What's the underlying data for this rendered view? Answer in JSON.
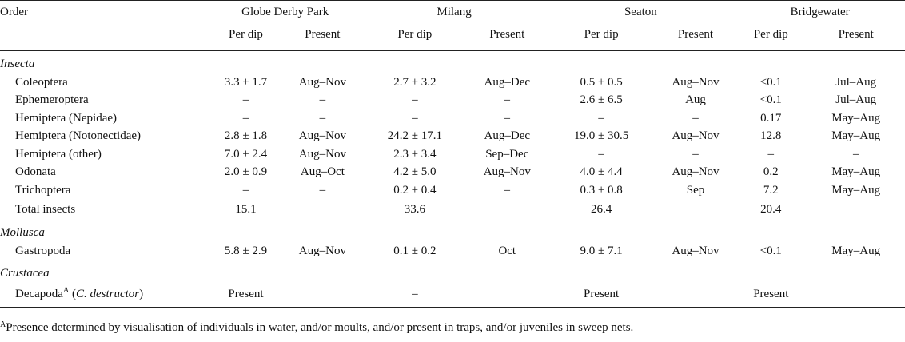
{
  "header": {
    "order_label": "Order",
    "sites": [
      "Globe Derby Park",
      "Milang",
      "Seaton",
      "Bridgewater"
    ],
    "per_dip_label": "Per dip",
    "present_label": "Present"
  },
  "groups": {
    "insecta": "Insecta",
    "mollusca": "Mollusca",
    "crustacea": "Crustacea"
  },
  "rows": [
    {
      "label": "Coleoptera",
      "v": [
        "3.3 ± 1.7",
        "Aug–Nov",
        "2.7 ± 3.2",
        "Aug–Dec",
        "0.5 ± 0.5",
        "Aug–Nov",
        "<0.1",
        "Jul–Aug"
      ]
    },
    {
      "label": "Ephemeroptera",
      "v": [
        "–",
        "–",
        "–",
        "–",
        "2.6 ± 6.5",
        "Aug",
        "<0.1",
        "Jul–Aug"
      ]
    },
    {
      "label": "Hemiptera (Nepidae)",
      "v": [
        "–",
        "–",
        "–",
        "–",
        "–",
        "–",
        "0.17",
        "May–Aug"
      ]
    },
    {
      "label": "Hemiptera (Notonectidae)",
      "v": [
        "2.8 ± 1.8",
        "Aug–Nov",
        "24.2 ± 17.1",
        "Aug–Dec",
        "19.0 ± 30.5",
        "Aug–Nov",
        "12.8",
        "May–Aug"
      ]
    },
    {
      "label": "Hemiptera (other)",
      "v": [
        "7.0 ± 2.4",
        "Aug–Nov",
        "2.3 ± 3.4",
        "Sep–Dec",
        "–",
        "–",
        "–",
        "–"
      ]
    },
    {
      "label": "Odonata",
      "v": [
        "2.0 ± 0.9",
        "Aug–Oct",
        "4.2 ± 5.0",
        "Aug–Nov",
        "4.0 ± 4.4",
        "Aug–Nov",
        "0.2",
        "May–Aug"
      ]
    },
    {
      "label": "Trichoptera",
      "v": [
        "–",
        "–",
        "0.2 ± 0.4",
        "–",
        "0.3 ± 0.8",
        "Sep",
        "7.2",
        "May–Aug"
      ]
    }
  ],
  "total": {
    "label": "Total insects",
    "v": [
      "15.1",
      "33.6",
      "26.4",
      "20.4"
    ]
  },
  "gastropoda": {
    "label": "Gastropoda",
    "v": [
      "5.8 ± 2.9",
      "Aug–Nov",
      "0.1 ± 0.2",
      "Oct",
      "9.0 ± 7.1",
      "Aug–Nov",
      "<0.1",
      "May–Aug"
    ]
  },
  "decapoda": {
    "label": "Decapoda",
    "sup": "A",
    "species": "C. destructor",
    "v": [
      "Present",
      "–",
      "Present",
      "Present"
    ]
  },
  "footnote": {
    "sup": "A",
    "text": "Presence determined by visualisation of individuals in water, and/or moults, and/or present in traps, and/or juveniles in sweep nets."
  }
}
